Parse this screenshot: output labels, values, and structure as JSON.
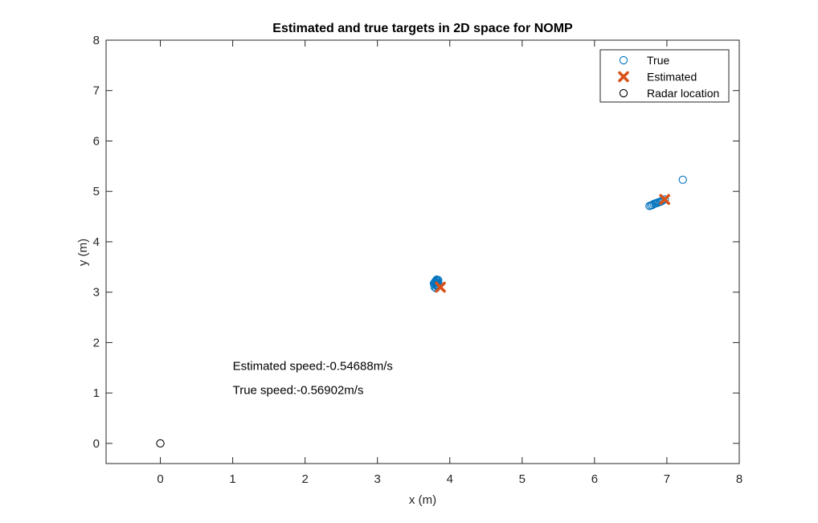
{
  "chart_data": {
    "type": "scatter",
    "title": "Estimated and true targets in 2D space for NOMP",
    "xlabel": "x (m)",
    "ylabel": "y (m)",
    "xlim": [
      -0.75,
      8
    ],
    "ylim": [
      -0.4,
      8
    ],
    "xticks": [
      0,
      1,
      2,
      3,
      4,
      5,
      6,
      7,
      8
    ],
    "yticks": [
      0,
      1,
      2,
      3,
      4,
      5,
      6,
      7,
      8
    ],
    "grid": false,
    "legend_position": "top-right",
    "colors": {
      "true": "#0072BD",
      "estimated": "#D95319",
      "radar": "#000000"
    },
    "series": [
      {
        "name": "True",
        "marker": "circle-open",
        "x": [
          7.22,
          6.97,
          6.94,
          6.92,
          6.9,
          6.88,
          6.86,
          6.84,
          6.82,
          6.8,
          6.78,
          6.76,
          3.78,
          3.79,
          3.8,
          3.81,
          3.82,
          3.83,
          3.84,
          3.8,
          3.82,
          3.84,
          3.79,
          3.81,
          3.83,
          3.8,
          3.82,
          3.84
        ],
        "y": [
          5.23,
          4.84,
          4.82,
          4.8,
          4.79,
          4.78,
          4.77,
          4.76,
          4.75,
          4.73,
          4.72,
          4.71,
          3.17,
          3.19,
          3.21,
          3.23,
          3.25,
          3.22,
          3.18,
          3.14,
          3.12,
          3.15,
          3.1,
          3.08,
          3.13,
          3.2,
          3.16,
          3.24
        ]
      },
      {
        "name": "Estimated",
        "marker": "x-bold",
        "x": [
          6.97,
          3.87
        ],
        "y": [
          4.84,
          3.1
        ]
      },
      {
        "name": "Radar location",
        "marker": "circle-open",
        "x": [
          0
        ],
        "y": [
          0
        ]
      }
    ],
    "annotations": [
      {
        "text": "Estimated speed:-0.54688m/s",
        "x": 1.0,
        "y": 1.46
      },
      {
        "text": "True speed:-0.56902m/s",
        "x": 1.0,
        "y": 0.98
      }
    ]
  }
}
